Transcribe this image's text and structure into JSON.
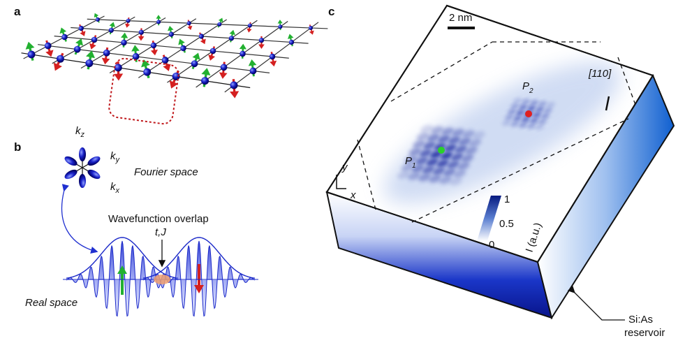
{
  "panels": {
    "a": {
      "label": "a"
    },
    "b": {
      "label": "b",
      "k_axes": [
        {
          "symbol": "k",
          "sub": "z"
        },
        {
          "symbol": "k",
          "sub": "y"
        },
        {
          "symbol": "k",
          "sub": "x"
        }
      ],
      "fourier_label": "Fourier space",
      "overlap_label": "Wavefunction overlap",
      "coupling_label": "t,J",
      "real_label": "Real space"
    },
    "c": {
      "label": "c",
      "scale_bar": "2 nm",
      "direction": "[110]",
      "sites": [
        {
          "symbol": "P",
          "sub": "2"
        },
        {
          "symbol": "P",
          "sub": "1"
        }
      ],
      "axes": [
        "y",
        "x"
      ],
      "colorbar": {
        "ticks": [
          "1",
          "0.5",
          "0"
        ],
        "label": "I (a.u.)"
      },
      "reservoir": [
        "Si:As",
        "reservoir"
      ]
    }
  }
}
